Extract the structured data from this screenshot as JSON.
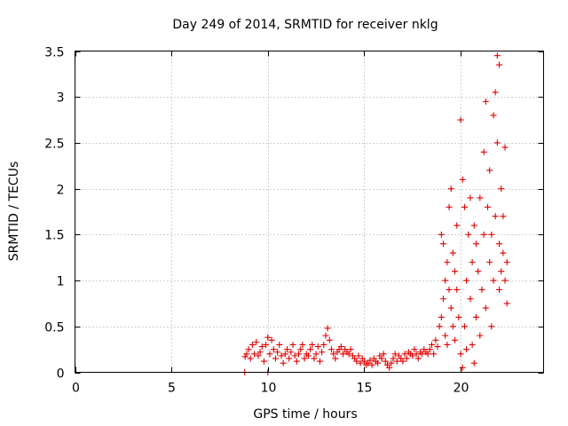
{
  "chart_data": {
    "type": "scatter",
    "title": "Day 249 of 2014, SRMTID for receiver nklg",
    "xlabel": "GPS time / hours",
    "ylabel": "SRMTID / TECUs",
    "xlim": [
      0,
      24.3
    ],
    "ylim": [
      0,
      3.5
    ],
    "x_ticks": [
      0,
      5,
      10,
      15,
      20
    ],
    "x_tick_labels": [
      "0",
      "5",
      "10",
      "15",
      "20"
    ],
    "y_ticks": [
      0,
      0.5,
      1,
      1.5,
      2,
      2.5,
      3,
      3.5
    ],
    "y_tick_labels": [
      "0",
      "0.5",
      "1",
      "1.5",
      "2",
      "2.5",
      "3",
      "3.5"
    ],
    "grid": true,
    "marker": "+",
    "series_color": "#e00000",
    "series": [
      {
        "name": "SRMTID",
        "points": [
          [
            8.8,
            0.0
          ],
          [
            8.82,
            0.17
          ],
          [
            8.9,
            0.2
          ],
          [
            9.0,
            0.25
          ],
          [
            9.1,
            0.15
          ],
          [
            9.2,
            0.3
          ],
          [
            9.3,
            0.2
          ],
          [
            9.4,
            0.33
          ],
          [
            9.5,
            0.18
          ],
          [
            9.6,
            0.22
          ],
          [
            9.7,
            0.28
          ],
          [
            9.8,
            0.12
          ],
          [
            9.9,
            0.3
          ],
          [
            10.0,
            0.38
          ],
          [
            10.0,
            0.0
          ],
          [
            10.1,
            0.2
          ],
          [
            10.2,
            0.35
          ],
          [
            10.3,
            0.25
          ],
          [
            10.4,
            0.15
          ],
          [
            10.5,
            0.22
          ],
          [
            10.6,
            0.3
          ],
          [
            10.7,
            0.18
          ],
          [
            10.8,
            0.1
          ],
          [
            10.9,
            0.2
          ],
          [
            11.0,
            0.25
          ],
          [
            11.1,
            0.15
          ],
          [
            11.2,
            0.22
          ],
          [
            11.3,
            0.3
          ],
          [
            11.4,
            0.18
          ],
          [
            11.5,
            0.12
          ],
          [
            11.6,
            0.2
          ],
          [
            11.7,
            0.25
          ],
          [
            11.8,
            0.3
          ],
          [
            11.9,
            0.15
          ],
          [
            12.0,
            0.2
          ],
          [
            12.1,
            0.18
          ],
          [
            12.2,
            0.25
          ],
          [
            12.3,
            0.3
          ],
          [
            12.4,
            0.15
          ],
          [
            12.5,
            0.2
          ],
          [
            12.6,
            0.28
          ],
          [
            12.7,
            0.12
          ],
          [
            12.8,
            0.22
          ],
          [
            12.9,
            0.3
          ],
          [
            13.0,
            0.4
          ],
          [
            13.1,
            0.48
          ],
          [
            13.2,
            0.35
          ],
          [
            13.3,
            0.25
          ],
          [
            13.4,
            0.2
          ],
          [
            13.5,
            0.15
          ],
          [
            13.6,
            0.22
          ],
          [
            13.7,
            0.25
          ],
          [
            13.8,
            0.28
          ],
          [
            13.9,
            0.2
          ],
          [
            14.0,
            0.25
          ],
          [
            14.1,
            0.22
          ],
          [
            14.2,
            0.2
          ],
          [
            14.3,
            0.25
          ],
          [
            14.4,
            0.18
          ],
          [
            14.5,
            0.15
          ],
          [
            14.6,
            0.12
          ],
          [
            14.7,
            0.18
          ],
          [
            14.8,
            0.1
          ],
          [
            14.9,
            0.15
          ],
          [
            15.0,
            0.12
          ],
          [
            15.1,
            0.08
          ],
          [
            15.2,
            0.1
          ],
          [
            15.3,
            0.13
          ],
          [
            15.4,
            0.08
          ],
          [
            15.5,
            0.15
          ],
          [
            15.6,
            0.12
          ],
          [
            15.7,
            0.1
          ],
          [
            15.8,
            0.18
          ],
          [
            15.9,
            0.15
          ],
          [
            16.0,
            0.2
          ],
          [
            16.1,
            0.12
          ],
          [
            16.2,
            0.08
          ],
          [
            16.3,
            0.05
          ],
          [
            16.4,
            0.1
          ],
          [
            16.5,
            0.15
          ],
          [
            16.6,
            0.2
          ],
          [
            16.7,
            0.12
          ],
          [
            16.8,
            0.18
          ],
          [
            16.9,
            0.15
          ],
          [
            17.0,
            0.12
          ],
          [
            17.1,
            0.2
          ],
          [
            17.2,
            0.15
          ],
          [
            17.3,
            0.22
          ],
          [
            17.4,
            0.2
          ],
          [
            17.5,
            0.18
          ],
          [
            17.6,
            0.25
          ],
          [
            17.7,
            0.2
          ],
          [
            17.8,
            0.15
          ],
          [
            17.9,
            0.22
          ],
          [
            18.0,
            0.2
          ],
          [
            18.1,
            0.25
          ],
          [
            18.2,
            0.22
          ],
          [
            18.3,
            0.2
          ],
          [
            18.4,
            0.25
          ],
          [
            18.5,
            0.3
          ],
          [
            18.6,
            0.2
          ],
          [
            18.7,
            0.35
          ],
          [
            18.8,
            0.28
          ],
          [
            18.9,
            0.5
          ],
          [
            19.0,
            0.6
          ],
          [
            19.0,
            1.5
          ],
          [
            19.1,
            0.8
          ],
          [
            19.1,
            1.4
          ],
          [
            19.2,
            1.0
          ],
          [
            19.2,
            0.4
          ],
          [
            19.3,
            1.2
          ],
          [
            19.3,
            0.3
          ],
          [
            19.4,
            1.8
          ],
          [
            19.4,
            0.9
          ],
          [
            19.5,
            2.0
          ],
          [
            19.5,
            0.7
          ],
          [
            19.6,
            1.3
          ],
          [
            19.6,
            0.5
          ],
          [
            19.7,
            1.1
          ],
          [
            19.7,
            0.35
          ],
          [
            19.8,
            0.9
          ],
          [
            19.8,
            1.6
          ],
          [
            19.9,
            0.6
          ],
          [
            20.0,
            2.75
          ],
          [
            20.0,
            0.2
          ],
          [
            20.1,
            2.1
          ],
          [
            20.1,
            0.05
          ],
          [
            20.2,
            1.8
          ],
          [
            20.2,
            0.5
          ],
          [
            20.3,
            1.0
          ],
          [
            20.3,
            0.25
          ],
          [
            20.4,
            1.5
          ],
          [
            20.5,
            0.8
          ],
          [
            20.5,
            1.9
          ],
          [
            20.6,
            1.2
          ],
          [
            20.6,
            0.3
          ],
          [
            20.7,
            0.1
          ],
          [
            20.7,
            1.6
          ],
          [
            20.8,
            0.6
          ],
          [
            20.8,
            1.4
          ],
          [
            20.9,
            1.1
          ],
          [
            21.0,
            0.4
          ],
          [
            21.0,
            1.9
          ],
          [
            21.1,
            0.9
          ],
          [
            21.2,
            2.4
          ],
          [
            21.2,
            1.5
          ],
          [
            21.3,
            0.7
          ],
          [
            21.3,
            2.95
          ],
          [
            21.4,
            1.8
          ],
          [
            21.5,
            1.2
          ],
          [
            21.5,
            2.2
          ],
          [
            21.6,
            0.5
          ],
          [
            21.6,
            1.5
          ],
          [
            21.7,
            2.8
          ],
          [
            21.7,
            1.0
          ],
          [
            21.8,
            3.05
          ],
          [
            21.8,
            1.7
          ],
          [
            21.9,
            2.5
          ],
          [
            21.9,
            3.45
          ],
          [
            22.0,
            1.4
          ],
          [
            22.0,
            3.35
          ],
          [
            22.0,
            0.9
          ],
          [
            22.1,
            1.1
          ],
          [
            22.1,
            2.0
          ],
          [
            22.2,
            1.3
          ],
          [
            22.2,
            1.7
          ],
          [
            22.3,
            1.0
          ],
          [
            22.3,
            2.45
          ],
          [
            22.4,
            1.2
          ],
          [
            22.4,
            0.75
          ]
        ]
      }
    ]
  }
}
